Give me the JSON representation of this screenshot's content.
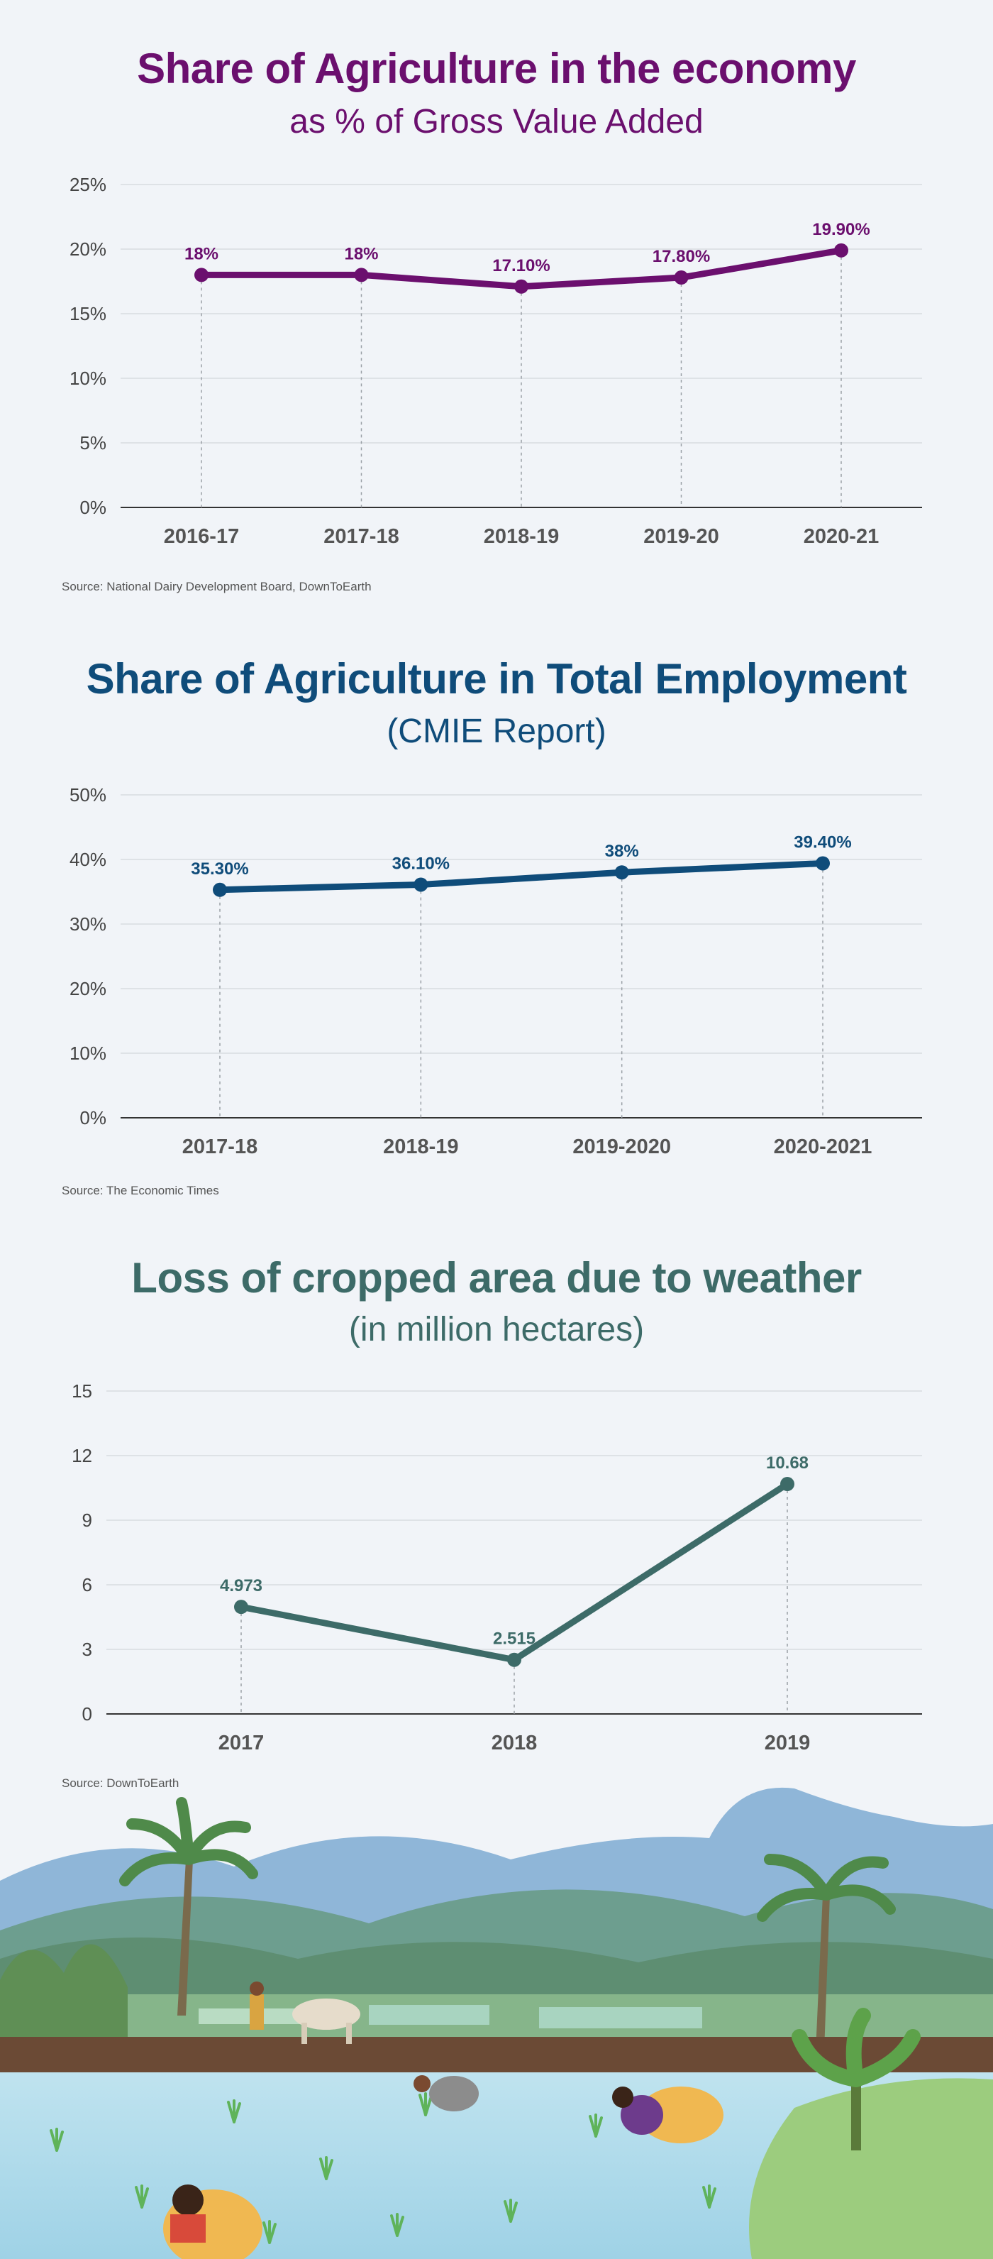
{
  "charts": [
    {
      "title": "Share of Agriculture in the economy",
      "subtitle": "as % of Gross Value Added",
      "source": "Source: National Dairy Development Board, DownToEarth",
      "color": "#6b0f6e"
    },
    {
      "title": "Share of Agriculture in Total Employment",
      "subtitle": "(CMIE Report)",
      "source": "Source: The Economic Times",
      "color": "#0f4c7a"
    },
    {
      "title": "Loss of cropped area due to weather",
      "subtitle": "(in million hectares)",
      "source": "Source: DownToEarth",
      "color": "#3d6b68"
    }
  ],
  "chart_data": [
    {
      "type": "line",
      "title": "Share of Agriculture in the economy",
      "subtitle": "as % of Gross Value Added",
      "categories": [
        "2016-17",
        "2017-18",
        "2018-19",
        "2019-20",
        "2020-21"
      ],
      "values": [
        18,
        18,
        17.1,
        17.8,
        19.9
      ],
      "data_labels": [
        "18%",
        "18%",
        "17.10%",
        "17.80%",
        "19.90%"
      ],
      "yticks": [
        "0%",
        "5%",
        "10%",
        "15%",
        "20%",
        "25%"
      ],
      "ylim": [
        0,
        25
      ],
      "grid": true,
      "color": "#6b0f6e"
    },
    {
      "type": "line",
      "title": "Share of Agriculture in Total Employment",
      "subtitle": "(CMIE Report)",
      "categories": [
        "2017-18",
        "2018-19",
        "2019-2020",
        "2020-2021"
      ],
      "values": [
        35.3,
        36.1,
        38,
        39.4
      ],
      "data_labels": [
        "35.30%",
        "36.10%",
        "38%",
        "39.40%"
      ],
      "yticks": [
        "0%",
        "10%",
        "20%",
        "30%",
        "40%",
        "50%"
      ],
      "ylim": [
        0,
        50
      ],
      "grid": true,
      "color": "#0f4c7a"
    },
    {
      "type": "line",
      "title": "Loss of cropped area due to weather",
      "subtitle": "(in million hectares)",
      "categories": [
        "2017",
        "2018",
        "2019"
      ],
      "values": [
        4.973,
        2.515,
        10.68
      ],
      "data_labels": [
        "4.973",
        "2.515",
        "10.68"
      ],
      "yticks": [
        "0",
        "3",
        "6",
        "9",
        "12",
        "15"
      ],
      "ylim": [
        0,
        15
      ],
      "grid": true,
      "color": "#3d6b68"
    }
  ]
}
